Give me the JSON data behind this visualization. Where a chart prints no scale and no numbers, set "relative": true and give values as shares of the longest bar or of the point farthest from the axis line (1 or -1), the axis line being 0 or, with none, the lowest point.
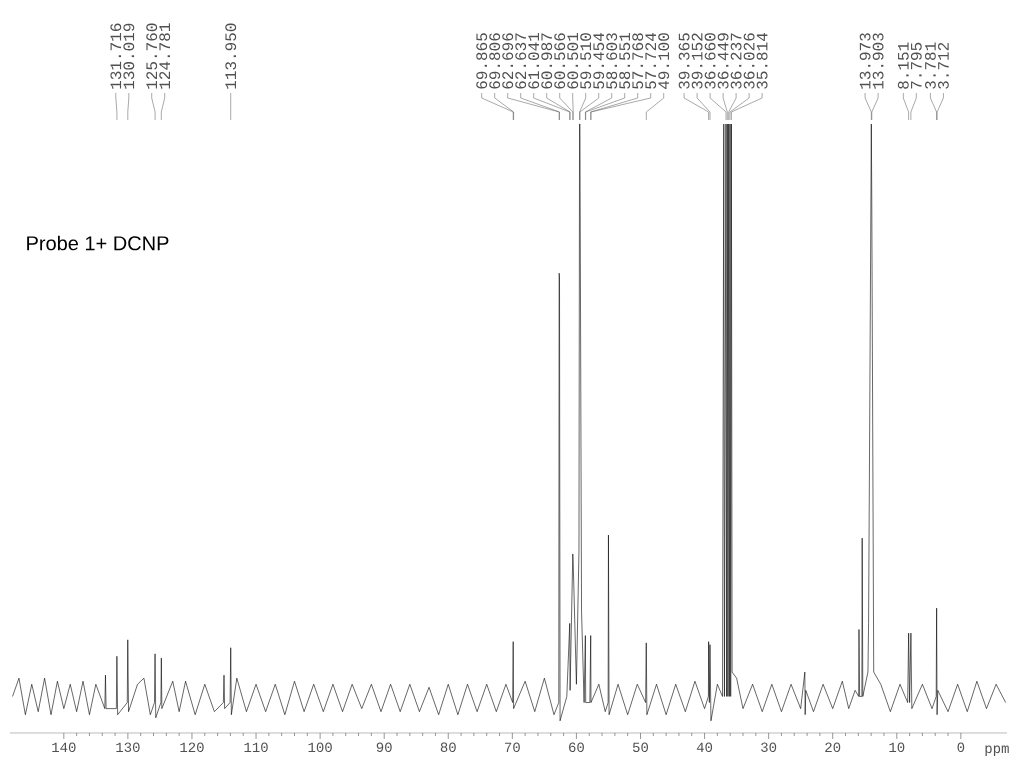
{
  "chart_data": {
    "type": "line",
    "relative": true,
    "color": "#000000",
    "xlabel": "ppm",
    "xlim": [
      148.4,
      -7.2
    ],
    "xticks": [
      140,
      130,
      120,
      110,
      100,
      90,
      80,
      70,
      60,
      50,
      40,
      30,
      20,
      10,
      0
    ],
    "x": [
      148,
      147,
      146,
      145,
      144,
      143,
      142,
      141,
      140,
      139,
      138,
      137,
      136,
      135,
      133.6,
      133.5,
      133.4,
      131.8,
      131.716,
      131.6,
      130.1,
      130.019,
      129.9,
      128.5,
      127.5,
      126.5,
      125.85,
      125.76,
      125.65,
      124.85,
      124.781,
      124.7,
      123,
      122,
      121,
      119.5,
      118,
      116.5,
      115.1,
      115.0,
      114.9,
      114.05,
      113.95,
      113.85,
      113,
      111.5,
      110,
      108.5,
      107,
      105.5,
      104,
      102.5,
      101,
      99.5,
      98,
      96.5,
      95,
      93.5,
      92,
      90.5,
      89,
      87.5,
      86,
      84.5,
      83,
      81.5,
      80,
      78.5,
      77,
      75.5,
      74,
      72.5,
      71,
      69.95,
      69.865,
      69.806,
      68,
      66.5,
      65,
      63.5,
      62.75,
      62.696,
      62.637,
      62.55,
      61.5,
      61.041,
      60.987,
      60.566,
      60.501,
      60.0,
      59.6,
      59.51,
      59.454,
      59.2,
      58.8,
      58.603,
      58.551,
      57.9,
      57.768,
      57.724,
      56.5,
      55.5,
      55.05,
      55.0,
      54.9,
      53.5,
      52,
      50.5,
      49.2,
      49.1,
      49.0,
      47.5,
      46,
      44.5,
      43,
      41.5,
      40,
      39.4,
      39.365,
      39.25,
      39.152,
      39.0,
      38,
      37.2,
      37.0,
      36.9,
      36.66,
      36.55,
      36.449,
      36.35,
      36.237,
      36.13,
      36.026,
      35.92,
      35.814,
      35.7,
      35,
      34,
      32.5,
      31,
      29.5,
      28,
      26.5,
      25,
      24.35,
      24.3,
      24.2,
      23,
      21.5,
      20,
      18.5,
      17.5,
      16.5,
      15.95,
      15.9,
      15.8,
      15.45,
      15.4,
      15.3,
      14.5,
      14.4,
      13.973,
      13.903,
      13.6,
      12.5,
      11,
      9.5,
      8.3,
      8.151,
      8.0,
      7.795,
      7.65,
      6,
      4.5,
      3.85,
      3.781,
      3.712,
      3.6,
      2,
      0.5,
      -1,
      -2.5,
      -4,
      -5.5,
      -7
    ],
    "values": [
      0.06,
      0.09,
      0.03,
      0.08,
      0.035,
      0.09,
      0.03,
      0.085,
      0.04,
      0.08,
      0.035,
      0.085,
      0.03,
      0.08,
      0.04,
      0.095,
      0.04,
      0.04,
      0.126,
      0.03,
      0.05,
      0.153,
      0.035,
      0.08,
      0.09,
      0.03,
      0.05,
      0.13,
      0.025,
      0.05,
      0.123,
      0.04,
      0.085,
      0.035,
      0.085,
      0.03,
      0.08,
      0.035,
      0.05,
      0.095,
      0.04,
      0.05,
      0.14,
      0.03,
      0.09,
      0.035,
      0.08,
      0.035,
      0.08,
      0.03,
      0.085,
      0.035,
      0.08,
      0.035,
      0.08,
      0.035,
      0.08,
      0.04,
      0.08,
      0.035,
      0.08,
      0.035,
      0.08,
      0.035,
      0.075,
      0.03,
      0.08,
      0.03,
      0.08,
      0.035,
      0.08,
      0.035,
      0.08,
      0.05,
      0.15,
      0.04,
      0.085,
      0.035,
      0.09,
      0.03,
      0.05,
      0.755,
      0.75,
      0.02,
      0.06,
      0.18,
      0.07,
      0.294,
      0.28,
      0.08,
      0.3,
      1.0,
      1.0,
      0.2,
      0.05,
      0.16,
      0.05,
      0.05,
      0.16,
      0.05,
      0.08,
      0.035,
      0.05,
      0.325,
      0.03,
      0.08,
      0.03,
      0.08,
      0.05,
      0.148,
      0.03,
      0.08,
      0.03,
      0.08,
      0.035,
      0.085,
      0.04,
      0.06,
      0.15,
      0.05,
      0.145,
      0.02,
      0.08,
      0.06,
      1.0,
      0.06,
      1.0,
      0.06,
      1.0,
      0.06,
      1.0,
      0.06,
      1.0,
      0.06,
      1.0,
      0.1,
      0.09,
      0.04,
      0.08,
      0.035,
      0.08,
      0.035,
      0.08,
      0.04,
      0.1,
      0.03,
      0.07,
      0.035,
      0.08,
      0.04,
      0.085,
      0.04,
      0.07,
      0.06,
      0.17,
      0.06,
      0.06,
      0.32,
      0.06,
      0.1,
      0.18,
      1.0,
      0.875,
      0.1,
      0.08,
      0.035,
      0.08,
      0.05,
      0.164,
      0.05,
      0.164,
      0.04,
      0.08,
      0.04,
      0.06,
      0.205,
      0.03,
      0.07,
      0.035,
      0.08,
      0.035,
      0.085,
      0.04,
      0.08,
      0.05
    ],
    "annotations": [
      "Probe 1+ DCNP",
      {
        "text": "131.716",
        "x": 131.716
      },
      {
        "text": "130.019",
        "x": 130.019
      },
      {
        "text": "125.760",
        "x": 125.76
      },
      {
        "text": "124.781",
        "x": 124.781
      },
      {
        "text": "113.950",
        "x": 113.95
      },
      {
        "text": "69.865",
        "x": 69.865
      },
      {
        "text": "69.806",
        "x": 69.806
      },
      {
        "text": "62.696",
        "x": 62.696
      },
      {
        "text": "62.637",
        "x": 62.637
      },
      {
        "text": "61.041",
        "x": 61.041
      },
      {
        "text": "60.987",
        "x": 60.987
      },
      {
        "text": "60.566",
        "x": 60.566
      },
      {
        "text": "60.501",
        "x": 60.501
      },
      {
        "text": "59.510",
        "x": 59.51
      },
      {
        "text": "59.454",
        "x": 59.454
      },
      {
        "text": "58.603",
        "x": 58.603
      },
      {
        "text": "58.551",
        "x": 58.551
      },
      {
        "text": "57.768",
        "x": 57.768
      },
      {
        "text": "57.724",
        "x": 57.724
      },
      {
        "text": "49.100",
        "x": 49.1
      },
      {
        "text": "39.365",
        "x": 39.365
      },
      {
        "text": "39.152",
        "x": 39.152
      },
      {
        "text": "36.660",
        "x": 36.66
      },
      {
        "text": "36.449",
        "x": 36.449
      },
      {
        "text": "36.237",
        "x": 36.237
      },
      {
        "text": "36.026",
        "x": 36.026
      },
      {
        "text": "35.814",
        "x": 35.814
      },
      {
        "text": "13.973",
        "x": 13.973
      },
      {
        "text": "13.903",
        "x": 13.903
      },
      {
        "text": "8.151",
        "x": 8.151
      },
      {
        "text": "7.795",
        "x": 7.795
      },
      {
        "text": "3.781",
        "x": 3.781
      },
      {
        "text": "3.712",
        "x": 3.712
      }
    ]
  }
}
